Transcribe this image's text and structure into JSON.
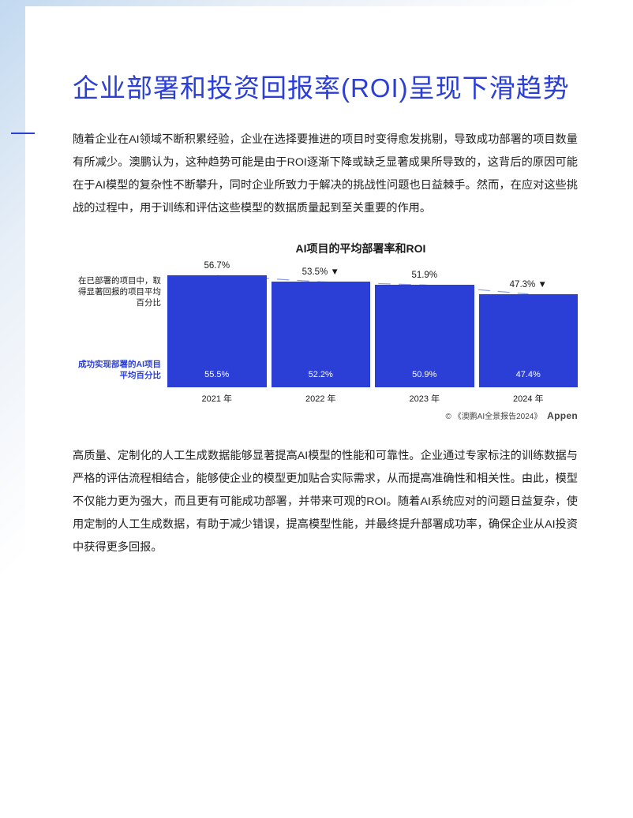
{
  "title": "企业部署和投资回报率(ROI)呈现下滑趋势",
  "paragraph1": "随着企业在AI领域不断积累经验，企业在选择要推进的项目时变得愈发挑剔，导致成功部署的项目数量有所减少。澳鹏认为，这种趋势可能是由于ROI逐渐下降或缺乏显著成果所导致的，这背后的原因可能在于AI模型的复杂性不断攀升，同时企业所致力于解决的挑战性问题也日益棘手。然而，在应对这些挑战的过程中，用于训练和评估这些模型的数据质量起到至关重要的作用。",
  "paragraph2": "高质量、定制化的人工生成数据能够显著提高AI模型的性能和可靠性。企业通过专家标注的训练数据与严格的评估流程相结合，能够使企业的模型更加贴合实际需求，从而提高准确性和相关性。由此，模型不仅能力更为强大，而且更有可能成功部署，并带来可观的ROI。随着AI系统应对的问题日益复杂，使用定制的人工生成数据，有助于减少错误，提高模型性能，并最终提升部署成功率，确保企业从AI投资中获得更多回报。",
  "chart": {
    "type": "bar",
    "title": "AI项目的平均部署率和ROI",
    "left_label_top": "在已部署的项目中，取得显著回报的项目平均百分比",
    "left_label_bot": "成功实现部署的AI项目平均百分比",
    "categories": [
      "2021 年",
      "2022 年",
      "2023 年",
      "2024 年"
    ],
    "top_values_pct": [
      56.7,
      53.5,
      51.9,
      47.3
    ],
    "top_value_labels": [
      "56.7%",
      "53.5% ▼",
      "51.9%",
      "47.3% ▼"
    ],
    "bottom_values_pct": [
      55.5,
      52.2,
      50.9,
      47.4
    ],
    "bottom_value_labels": [
      "55.5%",
      "52.2%",
      "50.9%",
      "47.4%"
    ],
    "bar_color": "#2b3ed6",
    "text_color": "#1a1a1a",
    "inner_text_color": "#ffffff",
    "trend_line_color": "#8fa0e8",
    "background_color": "#ffffff",
    "ymax": 60,
    "credit_prefix": "© 《澳鹏AI全景报告2024》",
    "credit_brand": "Appen"
  },
  "colors": {
    "title": "#2b3ed6",
    "body_text": "#222222"
  }
}
